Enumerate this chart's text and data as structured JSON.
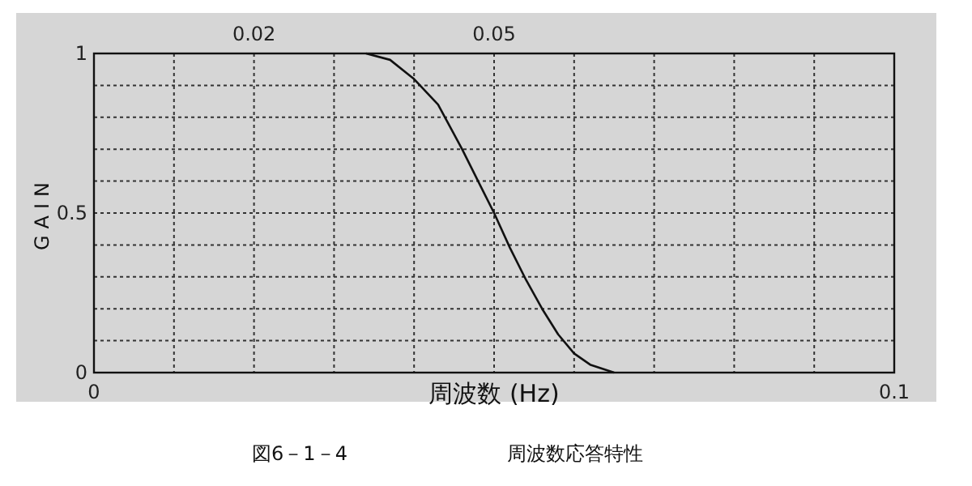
{
  "chart_data": {
    "type": "line",
    "xlabel": "周波数 (Hz)",
    "ylabel": "GAIN",
    "annotations": [
      "図6－1－4",
      "周波数応答特性"
    ],
    "x": [
      0.034,
      0.037,
      0.04,
      0.043,
      0.046,
      0.048,
      0.05,
      0.052,
      0.054,
      0.056,
      0.058,
      0.06,
      0.062,
      0.065
    ],
    "series": [
      {
        "color": "#111111",
        "values": [
          1,
          0.98,
          0.92,
          0.84,
          0.7,
          0.6,
          0.5,
          0.39,
          0.29,
          0.2,
          0.12,
          0.06,
          0.025,
          0
        ]
      }
    ],
    "xlim": [
      0,
      0.1
    ],
    "xticks": [
      0,
      {
        "value": 0.01,
        "label": null
      },
      {
        "value": 0.02,
        "label": null
      },
      {
        "value": 0.03,
        "label": null
      },
      {
        "value": 0.04,
        "label": null
      },
      {
        "value": 0.05,
        "label": null
      },
      {
        "value": 0.06,
        "label": null
      },
      {
        "value": 0.07,
        "label": null
      },
      {
        "value": 0.08,
        "label": null
      },
      {
        "value": 0.09,
        "label": null
      },
      0.1
    ],
    "x2lim": [
      0,
      0.1
    ],
    "x2ticks": [
      0.02,
      0.05
    ],
    "ylim": [
      0,
      1
    ],
    "yticks": [
      0,
      {
        "value": 0.1,
        "label": null
      },
      {
        "value": 0.2,
        "label": null
      },
      {
        "value": 0.3,
        "label": null
      },
      {
        "value": 0.4,
        "label": null
      },
      0.5,
      {
        "value": 0.6,
        "label": null
      },
      {
        "value": 0.7,
        "label": null
      },
      {
        "value": 0.8,
        "label": null
      },
      {
        "value": 0.9,
        "label": null
      },
      1
    ],
    "grid": true,
    "marker": "none",
    "line_style": "solid"
  }
}
